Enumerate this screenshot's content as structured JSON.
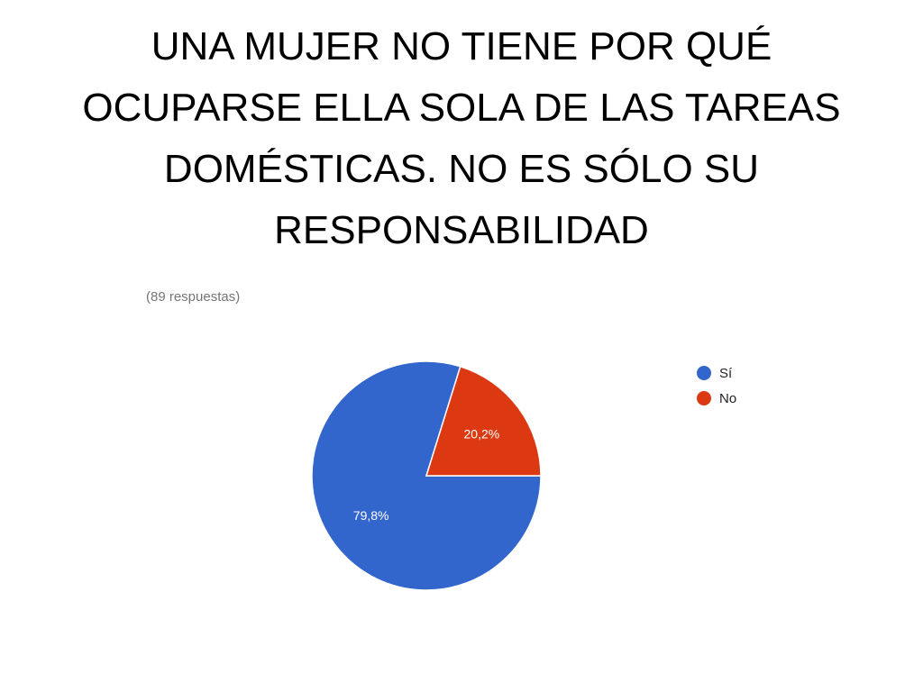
{
  "slide": {
    "title": "UNA MUJER NO TIENE POR QUÉ OCUPARSE ELLA SOLA DE LAS TAREAS DOMÉSTICAS. NO ES SÓLO SU RESPONSABILIDAD",
    "response_count": "(89 respuestas)"
  },
  "chart_data": {
    "type": "pie",
    "title": "",
    "slices": [
      {
        "label": "Sí",
        "value": 79.8,
        "display": "79,8%",
        "color": "#3366cc"
      },
      {
        "label": "No",
        "value": 20.2,
        "display": "20,2%",
        "color": "#dc3912"
      }
    ],
    "legend_position": "right"
  }
}
